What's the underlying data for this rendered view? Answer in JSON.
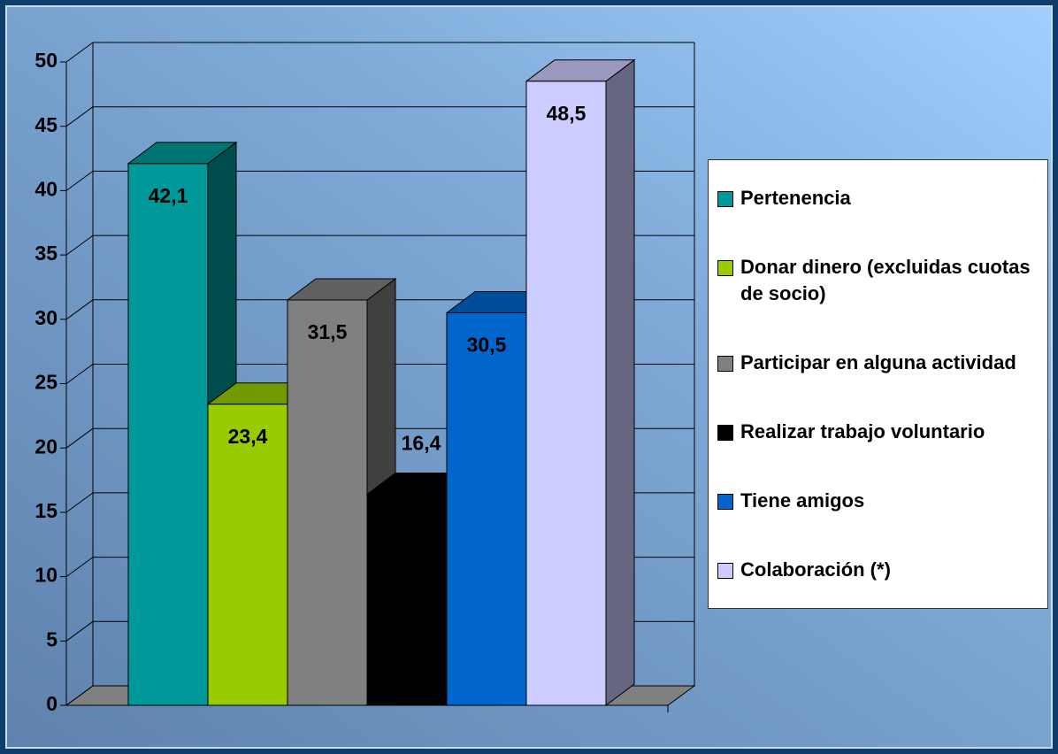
{
  "chart_data": {
    "type": "bar",
    "categories": [
      null
    ],
    "series": [
      {
        "name": "Pertenencia",
        "color": "#009999",
        "values": [
          42.1
        ],
        "value_labels": [
          "42,1"
        ]
      },
      {
        "name": "Donar dinero (excluidas cuotas de socio)",
        "color": "#99cc00",
        "values": [
          23.4
        ],
        "value_labels": [
          "23,4"
        ]
      },
      {
        "name": "Participar en alguna actividad",
        "color": "#808080",
        "values": [
          31.5
        ],
        "value_labels": [
          "31,5"
        ]
      },
      {
        "name": "Realizar trabajo voluntario",
        "color": "#000000",
        "values": [
          16.4
        ],
        "value_labels": [
          "16,4"
        ]
      },
      {
        "name": "Tiene amigos",
        "color": "#0066cc",
        "values": [
          30.5
        ],
        "value_labels": [
          "30,5"
        ]
      },
      {
        "name": "Colaboración (*)",
        "color": "#ccccff",
        "values": [
          48.5
        ],
        "value_labels": [
          "48,5"
        ]
      }
    ],
    "ylim": [
      0,
      50
    ],
    "yticks": [
      0,
      5,
      10,
      15,
      20,
      25,
      30,
      35,
      40,
      45,
      50
    ],
    "grid": true,
    "legend": "right"
  }
}
